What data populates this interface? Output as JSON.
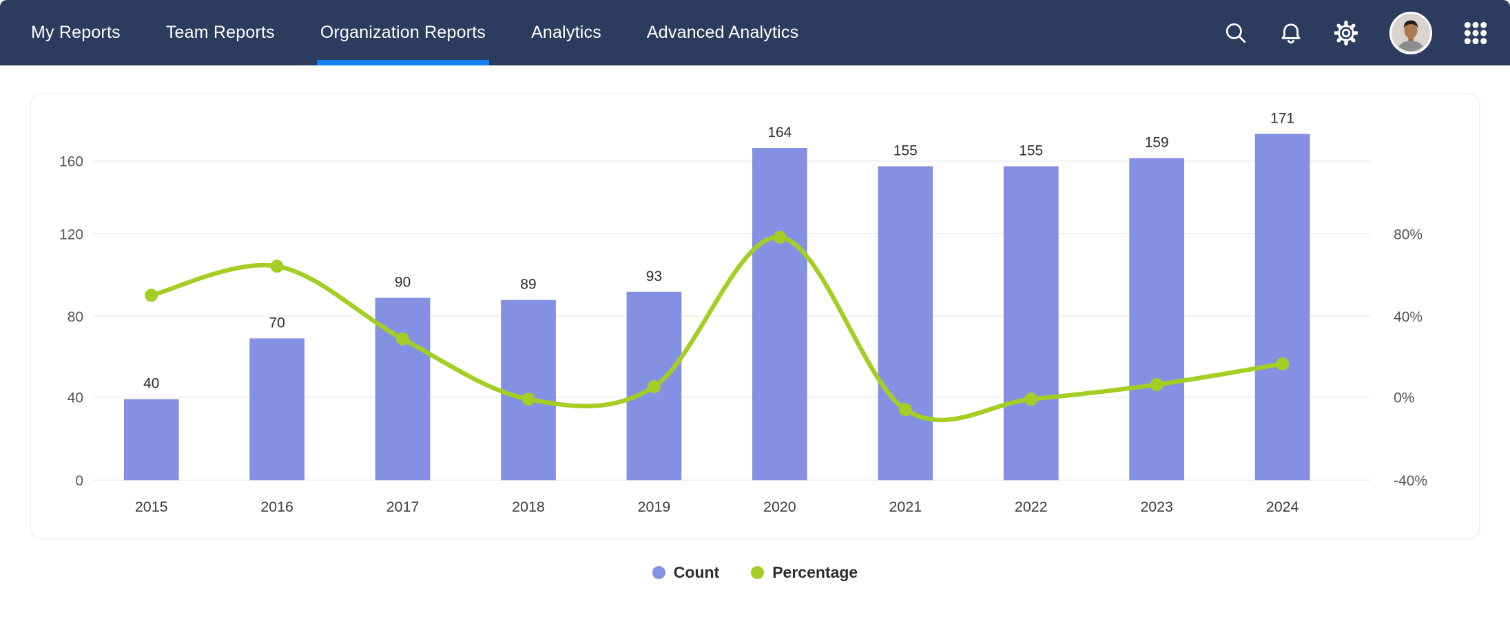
{
  "colors": {
    "page_bg": "#ffffff",
    "nav_bg": "#2b3c5f",
    "accent": "#1380f6",
    "nav_icon": "#ffffff",
    "card_border": "#ececf1",
    "grid": "#ededed",
    "axis_text": "#555555",
    "value_text": "#2b2b2b",
    "year_text": "#3c3c3c",
    "legend_text": "#2c2c2c",
    "bar_color": "#8491e2",
    "line_color": "#a4ce24"
  },
  "nav": {
    "tabs": [
      {
        "label": "My Reports",
        "active": false
      },
      {
        "label": "Team Reports",
        "active": false
      },
      {
        "label": "Organization Reports",
        "active": true
      },
      {
        "label": "Analytics",
        "active": false
      },
      {
        "label": "Advanced Analytics",
        "active": false
      }
    ],
    "icons": [
      {
        "name": "search-icon"
      },
      {
        "name": "notifications-bell-icon"
      },
      {
        "name": "settings-gear-icon"
      },
      {
        "name": "user-avatar"
      },
      {
        "name": "apps-grid-icon"
      }
    ]
  },
  "chart_data": {
    "type": "bar",
    "subtype": "combo-bar-line-dual-axis",
    "categories": [
      "2015",
      "2016",
      "2017",
      "2018",
      "2019",
      "2020",
      "2021",
      "2022",
      "2023",
      "2024"
    ],
    "series": [
      {
        "name": "Count",
        "type": "bar",
        "axis": "left",
        "color": "#8491e2",
        "values": [
          40,
          70,
          90,
          89,
          93,
          164,
          155,
          155,
          159,
          171
        ]
      },
      {
        "name": "Percentage",
        "type": "line",
        "axis": "right",
        "color": "#a4ce24",
        "unit": "%",
        "values": [
          49,
          63,
          28,
          -1,
          5,
          77,
          -6,
          -1,
          6,
          16
        ]
      }
    ],
    "left_axis": {
      "ticks": [
        0,
        40,
        80,
        120,
        160
      ],
      "range": [
        0,
        190
      ]
    },
    "right_axis": {
      "ticks": [
        "80%",
        "40%",
        "0%",
        "-40%"
      ],
      "range": [
        -40,
        120
      ]
    },
    "grid": true,
    "data_labels": "bars-only",
    "legend_position": "bottom"
  },
  "legend": {
    "items": [
      {
        "label": "Count",
        "color": "#8491e2"
      },
      {
        "label": "Percentage",
        "color": "#a4ce24"
      }
    ]
  }
}
